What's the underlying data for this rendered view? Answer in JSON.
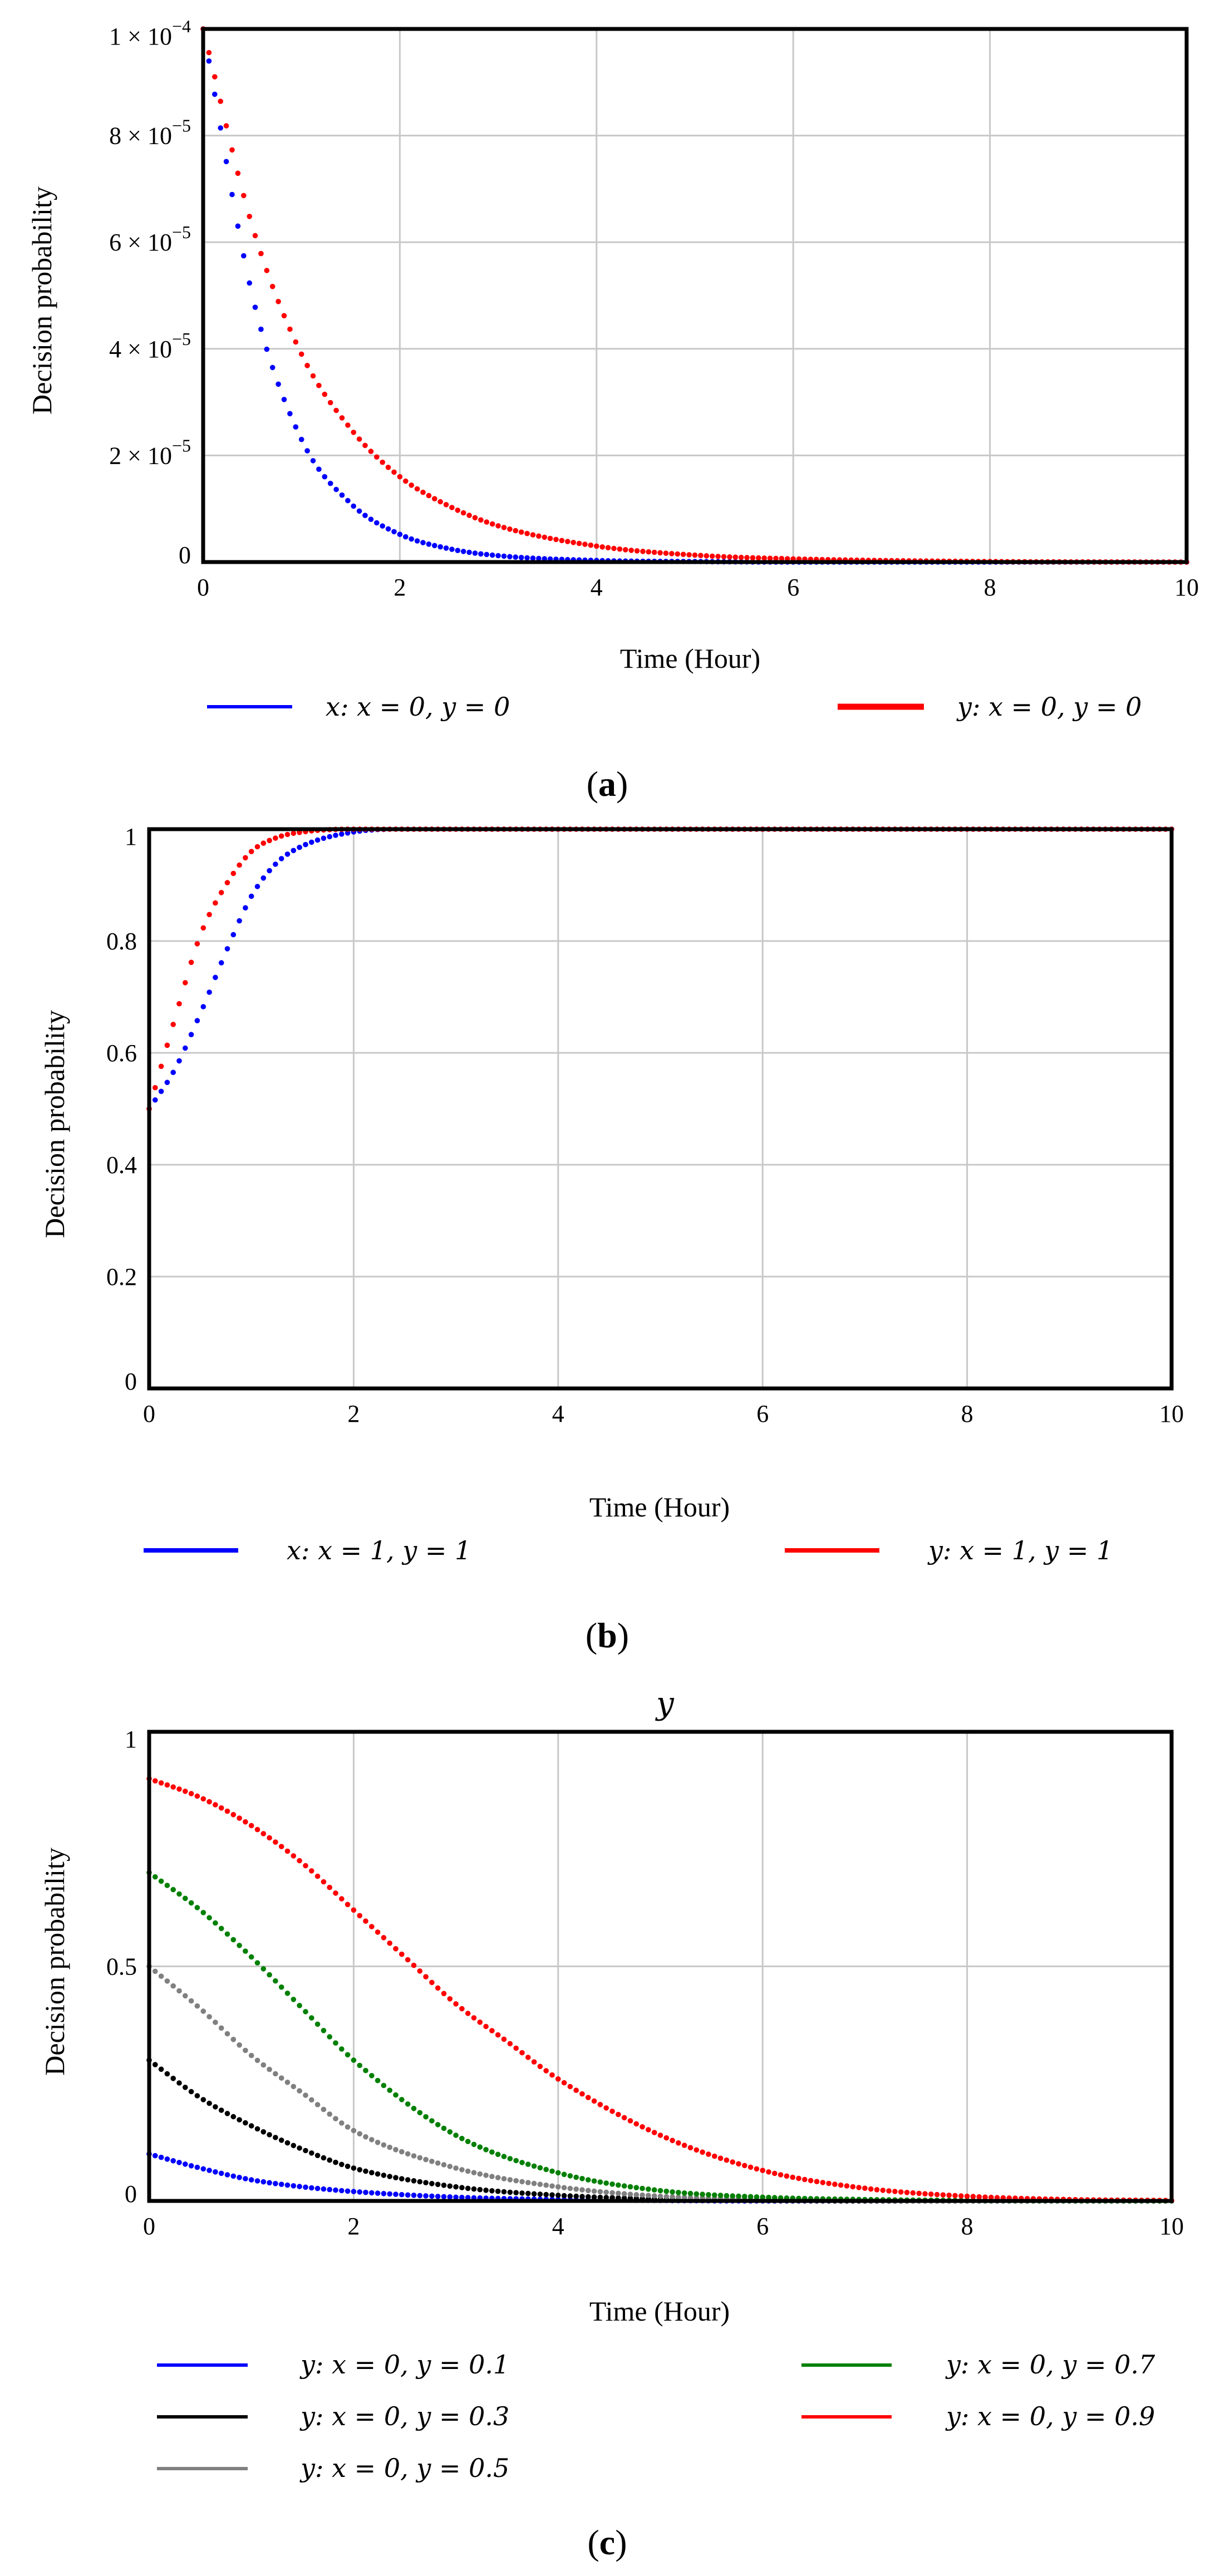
{
  "chart_data": [
    {
      "type": "scatter",
      "panel_label": "a",
      "title": "",
      "xlabel": "Time (Hour)",
      "ylabel": "Decision probability",
      "xlim": [
        0,
        10
      ],
      "ylim": [
        0,
        0.0001
      ],
      "xticks": [
        0,
        2,
        4,
        6,
        8,
        10
      ],
      "xtick_labels": [
        "0",
        "2",
        "4",
        "6",
        "8",
        "10"
      ],
      "yticks": [
        0,
        2e-05,
        4e-05,
        6e-05,
        8e-05,
        0.0001
      ],
      "ytick_labels": [
        {
          "mant": "0",
          "exp": ""
        },
        {
          "mant": "2 × 10",
          "exp": "−5"
        },
        {
          "mant": "4 × 10",
          "exp": "−5"
        },
        {
          "mant": "6 × 10",
          "exp": "−5"
        },
        {
          "mant": "8 × 10",
          "exp": "−5"
        },
        {
          "mant": "1 × 10",
          "exp": "−4"
        }
      ],
      "grid": true,
      "legend_position": "bottom",
      "series": [
        {
          "name": "x: x = 0, y = 0",
          "color": "#0000ff",
          "x": [
            0,
            0.5,
            1,
            1.5,
            2,
            2.5,
            3,
            4,
            5,
            6,
            8,
            10
          ],
          "y": [
            0.0001,
            5e-05,
            2.3e-05,
            1.1e-05,
            5.2e-06,
            2.5e-06,
            1.2e-06,
            3e-07,
            1e-07,
            0,
            0,
            0
          ]
        },
        {
          "name": "y: x = 0, y = 0",
          "color": "#ff0000",
          "x": [
            0,
            0.5,
            1,
            1.5,
            2,
            2.5,
            3,
            4,
            5,
            6,
            8,
            10
          ],
          "y": [
            0.0001,
            6.3e-05,
            3.9e-05,
            2.5e-05,
            1.6e-05,
            1.05e-05,
            6.8e-06,
            3e-06,
            1.3e-06,
            6e-07,
            1e-07,
            0
          ]
        }
      ]
    },
    {
      "type": "scatter",
      "panel_label": "b",
      "title": "",
      "xlabel": "Time (Hour)",
      "ylabel": "Decision probability",
      "xlim": [
        0,
        10
      ],
      "ylim": [
        0,
        1
      ],
      "xticks": [
        0,
        2,
        4,
        6,
        8,
        10
      ],
      "xtick_labels": [
        "0",
        "2",
        "4",
        "6",
        "8",
        "10"
      ],
      "yticks": [
        0,
        0.2,
        0.4,
        0.6,
        0.8,
        1
      ],
      "ytick_labels": [
        {
          "mant": "0",
          "exp": ""
        },
        {
          "mant": "0.2",
          "exp": ""
        },
        {
          "mant": "0.4",
          "exp": ""
        },
        {
          "mant": "0.6",
          "exp": ""
        },
        {
          "mant": "0.8",
          "exp": ""
        },
        {
          "mant": "1",
          "exp": ""
        }
      ],
      "grid": true,
      "legend_position": "bottom",
      "series": [
        {
          "name": "x: x = 1, y = 1",
          "color": "#0000ff",
          "x": [
            0,
            0.25,
            0.5,
            0.75,
            1,
            1.25,
            1.5,
            2,
            2.5,
            3,
            4,
            6,
            8,
            10
          ],
          "y": [
            0.5,
            0.57,
            0.67,
            0.78,
            0.88,
            0.94,
            0.97,
            0.995,
            1,
            1,
            1,
            1,
            1,
            1
          ]
        },
        {
          "name": "y: x = 1, y = 1",
          "color": "#ff0000",
          "x": [
            0,
            0.25,
            0.5,
            0.75,
            1,
            1.25,
            1.5,
            2,
            2.5,
            3,
            4,
            6,
            8,
            10
          ],
          "y": [
            0.5,
            0.66,
            0.81,
            0.9,
            0.96,
            0.985,
            0.995,
            1,
            1,
            1,
            1,
            1,
            1,
            1
          ]
        }
      ]
    },
    {
      "type": "scatter",
      "panel_label": "c",
      "title": "",
      "xlabel": "Time (Hour)",
      "ylabel": "Decision probability",
      "xlim": [
        0,
        10
      ],
      "ylim": [
        0,
        1
      ],
      "xticks": [
        0,
        2,
        4,
        6,
        8,
        10
      ],
      "xtick_labels": [
        "0",
        "2",
        "4",
        "6",
        "8",
        "10"
      ],
      "yticks": [
        0,
        0.5,
        1
      ],
      "ytick_labels": [
        {
          "mant": "0",
          "exp": ""
        },
        {
          "mant": "0.5",
          "exp": ""
        },
        {
          "mant": "1",
          "exp": ""
        }
      ],
      "grid": true,
      "legend_position": "bottom",
      "series": [
        {
          "name": "y: x = 0, y = 0.1",
          "color": "#0000ff",
          "x": [
            0,
            0.5,
            1,
            1.5,
            2,
            3,
            4,
            5,
            6,
            8,
            10
          ],
          "y": [
            0.1,
            0.07,
            0.045,
            0.03,
            0.02,
            0.008,
            0.003,
            0.001,
            0,
            0,
            0
          ]
        },
        {
          "name": "y: x = 0, y = 0.3",
          "color": "#000000",
          "x": [
            0,
            0.5,
            1,
            1.5,
            2,
            3,
            4,
            5,
            6,
            8,
            10
          ],
          "y": [
            0.3,
            0.22,
            0.16,
            0.11,
            0.07,
            0.03,
            0.012,
            0.004,
            0.001,
            0,
            0
          ]
        },
        {
          "name": "y: x = 0, y = 0.5",
          "color": "#808080",
          "x": [
            0,
            0.5,
            1,
            1.5,
            2,
            3,
            4,
            5,
            6,
            8,
            10
          ],
          "y": [
            0.5,
            0.41,
            0.31,
            0.23,
            0.15,
            0.07,
            0.03,
            0.01,
            0.004,
            0,
            0
          ]
        },
        {
          "name": "y: x = 0, y = 0.7",
          "color": "#008000",
          "x": [
            0,
            0.5,
            1,
            1.5,
            2,
            3,
            4,
            5,
            6,
            7,
            8,
            10
          ],
          "y": [
            0.7,
            0.62,
            0.52,
            0.41,
            0.3,
            0.14,
            0.06,
            0.022,
            0.008,
            0.003,
            0.001,
            0
          ]
        },
        {
          "name": "y: x = 0, y = 0.9",
          "color": "#ff0000",
          "x": [
            0,
            0.5,
            1,
            1.5,
            2,
            2.5,
            3,
            3.5,
            4,
            5,
            6,
            7,
            8,
            9,
            10
          ],
          "y": [
            0.9,
            0.86,
            0.8,
            0.72,
            0.62,
            0.52,
            0.42,
            0.34,
            0.26,
            0.14,
            0.065,
            0.027,
            0.01,
            0.003,
            0.001
          ]
        }
      ]
    }
  ],
  "stray_label": "y"
}
